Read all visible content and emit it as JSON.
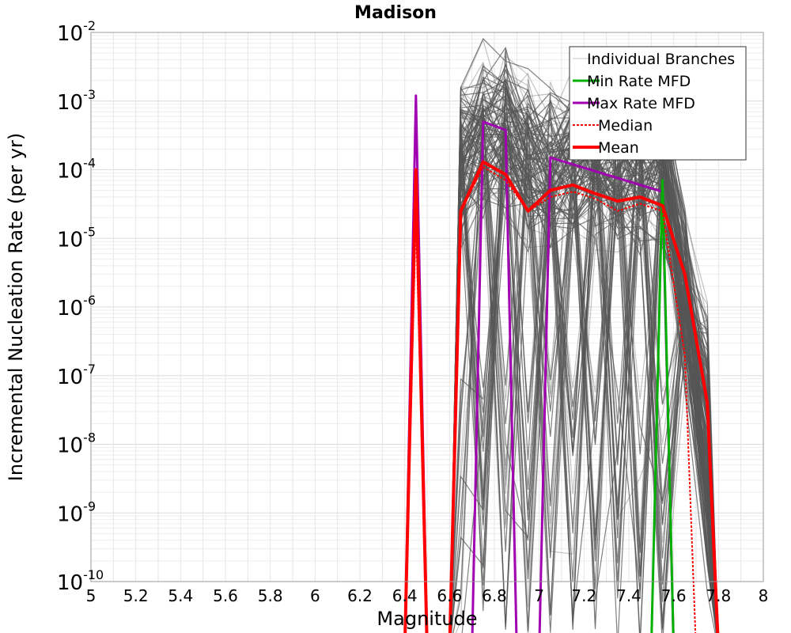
{
  "chart_data": {
    "type": "line",
    "title": "Madison",
    "xlabel": "Magnitude",
    "ylabel": "Incremental Nucleation Rate (per yr)",
    "xlim": [
      5,
      8
    ],
    "ylim": [
      1e-10,
      0.01
    ],
    "yscale": "log",
    "grid": true,
    "legend_position": "top-right",
    "x_ticks": [
      "5",
      "5.2",
      "5.4",
      "5.6",
      "5.8",
      "6",
      "6.2",
      "6.4",
      "6.6",
      "6.8",
      "7",
      "7.2",
      "7.4",
      "7.6",
      "7.8",
      "8"
    ],
    "y_ticks": [
      {
        "base": "10",
        "exp": "-10",
        "value": 1e-10
      },
      {
        "base": "10",
        "exp": "-9",
        "value": 1e-09
      },
      {
        "base": "10",
        "exp": "-8",
        "value": 1e-08
      },
      {
        "base": "10",
        "exp": "-7",
        "value": 1e-07
      },
      {
        "base": "10",
        "exp": "-6",
        "value": 1e-06
      },
      {
        "base": "10",
        "exp": "-5",
        "value": 1e-05
      },
      {
        "base": "10",
        "exp": "-4",
        "value": 0.0001
      },
      {
        "base": "10",
        "exp": "-3",
        "value": 0.001
      },
      {
        "base": "10",
        "exp": "-2",
        "value": 0.01
      }
    ],
    "legend": [
      {
        "label": "Individual Branches",
        "color": "#c8c8c8",
        "style": "solid-thin"
      },
      {
        "label": "Min Rate MFD",
        "color": "#00b000",
        "style": "solid"
      },
      {
        "label": "Max Rate MFD",
        "color": "#a000b0",
        "style": "solid"
      },
      {
        "label": "Median",
        "color": "#ff0000",
        "style": "dotted"
      },
      {
        "label": "Mean",
        "color": "#ff0000",
        "style": "solid-thick"
      }
    ],
    "branches_color": "#555555",
    "series": [
      {
        "name": "Max Rate MFD",
        "color": "#a000b0",
        "x": [
          6.4,
          6.45,
          6.5,
          6.7,
          6.75,
          6.85,
          6.9,
          7.0,
          7.05,
          7.55,
          7.6
        ],
        "y": [
          1e-11,
          0.0012,
          1e-11,
          1e-11,
          0.0005,
          0.00038,
          1e-11,
          1e-11,
          0.00015,
          4.8e-05,
          1e-11
        ]
      },
      {
        "name": "Min Rate MFD",
        "color": "#00b000",
        "x": [
          7.5,
          7.55,
          7.6
        ],
        "y": [
          1e-11,
          7e-05,
          1e-11
        ]
      },
      {
        "name": "Median",
        "color": "#ff0000",
        "x": [
          6.4,
          6.45,
          6.5,
          6.6,
          6.65,
          6.75,
          6.85,
          6.95,
          7.05,
          7.15,
          7.25,
          7.35,
          7.45,
          7.55,
          7.65,
          7.7
        ],
        "y": [
          1e-11,
          2e-05,
          1e-11,
          1e-11,
          2.5e-05,
          0.00011,
          7e-05,
          2.5e-05,
          4e-05,
          4.8e-05,
          3.8e-05,
          2.5e-05,
          3.2e-05,
          2.5e-05,
          2e-07,
          1e-11
        ]
      },
      {
        "name": "Mean",
        "color": "#ff0000",
        "x": [
          6.4,
          6.45,
          6.5,
          6.6,
          6.65,
          6.75,
          6.85,
          6.95,
          7.05,
          7.15,
          7.25,
          7.35,
          7.45,
          7.55,
          7.65,
          7.75,
          7.8
        ],
        "y": [
          1e-11,
          0.0001,
          1e-11,
          1e-11,
          2.5e-05,
          0.00013,
          8.5e-05,
          2.5e-05,
          5e-05,
          6e-05,
          4.5e-05,
          3.5e-05,
          4e-05,
          3e-05,
          3e-06,
          4e-08,
          1e-11
        ]
      }
    ]
  }
}
